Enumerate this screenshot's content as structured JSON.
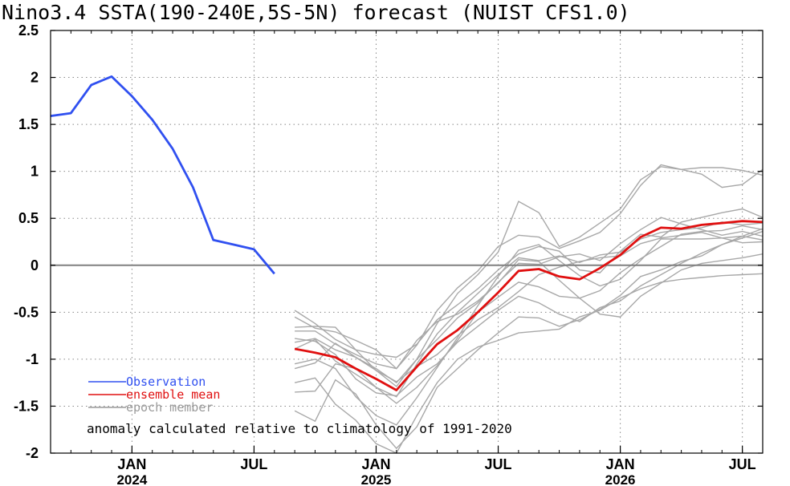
{
  "chart_data": {
    "type": "line",
    "title": "Nino3.4 SSTA(190-240E,5S-5N) forecast (NUIST CFS1.0)",
    "annotation": "anomaly calculated relative to climatology of 1991-2020",
    "ylim": [
      -2,
      2.5
    ],
    "yticks": [
      "2.5",
      "2",
      "1.5",
      "1",
      "0.5",
      "0",
      "-0.5",
      "-1",
      "-1.5",
      "-2"
    ],
    "yticks_values": [
      2.5,
      2,
      1.5,
      1,
      0.5,
      0,
      -0.5,
      -1,
      -1.5,
      -2
    ],
    "xlim": [
      "2023-09",
      "2026-08"
    ],
    "xticks": [
      {
        "label": "JAN",
        "year": "2024",
        "date": "2024-01"
      },
      {
        "label": "JUL",
        "year": "",
        "date": "2024-07"
      },
      {
        "label": "JAN",
        "year": "2025",
        "date": "2025-01"
      },
      {
        "label": "JUL",
        "year": "",
        "date": "2025-07"
      },
      {
        "label": "JAN",
        "year": "2026",
        "date": "2026-01"
      },
      {
        "label": "JUL",
        "year": "",
        "date": "2026-07"
      }
    ],
    "grid": true,
    "legend": [
      {
        "name": "Observation",
        "color": "#3050f0"
      },
      {
        "name": "ensemble mean",
        "color": "#e01010"
      },
      {
        "name": "epoch member",
        "color": "#999999"
      }
    ],
    "observation": {
      "name": "Observation",
      "color": "#3050f0",
      "x": [
        "2023-09",
        "2023-10",
        "2023-11",
        "2023-12",
        "2024-01",
        "2024-02",
        "2024-03",
        "2024-04",
        "2024-05",
        "2024-06",
        "2024-07",
        "2024-08"
      ],
      "values": [
        1.59,
        1.62,
        1.92,
        2.01,
        1.8,
        1.55,
        1.24,
        0.83,
        0.27,
        0.22,
        0.17,
        -0.09
      ]
    },
    "ensemble_mean": {
      "name": "ensemble mean",
      "color": "#e01010",
      "x": [
        "2024-09",
        "2024-10",
        "2024-11",
        "2024-12",
        "2025-01",
        "2025-02",
        "2025-03",
        "2025-04",
        "2025-05",
        "2025-06",
        "2025-07",
        "2025-08",
        "2025-09",
        "2025-10",
        "2025-11",
        "2025-12",
        "2026-01",
        "2026-02",
        "2026-03",
        "2026-04",
        "2026-05",
        "2026-06",
        "2026-07",
        "2026-08"
      ],
      "values": [
        -0.89,
        -0.93,
        -0.98,
        -1.1,
        -1.21,
        -1.33,
        -1.08,
        -0.84,
        -0.69,
        -0.5,
        -0.29,
        -0.06,
        -0.04,
        -0.12,
        -0.15,
        -0.03,
        0.11,
        0.3,
        0.4,
        0.39,
        0.43,
        0.45,
        0.47,
        0.46
      ]
    },
    "members": [
      {
        "values": [
          -0.48,
          -0.62,
          -0.79,
          -0.9,
          -0.95,
          -0.98,
          -0.84,
          -0.58,
          -0.42,
          -0.25,
          -0.05,
          0.12,
          0.2,
          0.15,
          -0.05,
          -0.08,
          0.15,
          0.33,
          0.3,
          0.46,
          0.51,
          0.56,
          0.6,
          0.51
        ]
      },
      {
        "values": [
          -0.66,
          -0.65,
          -0.66,
          -0.9,
          -1.12,
          -1.29,
          -1.0,
          -0.79,
          -0.56,
          -0.4,
          -0.18,
          0.02,
          0.01,
          0.09,
          0.12,
          0.05,
          0.23,
          0.38,
          0.51,
          0.44,
          0.38,
          0.32,
          0.36,
          0.31
        ]
      },
      {
        "values": [
          -0.89,
          -0.79,
          -1.02,
          -1.16,
          -1.3,
          -1.47,
          -1.3,
          -1.07,
          -0.8,
          -0.5,
          -0.34,
          -0.18,
          -0.23,
          -0.33,
          -0.35,
          -0.27,
          -0.08,
          0.07,
          0.2,
          0.33,
          0.36,
          0.37,
          0.42,
          0.38
        ]
      },
      {
        "values": [
          -1.1,
          -1.04,
          -0.83,
          -0.98,
          -1.12,
          -1.24,
          -1.08,
          -0.95,
          -0.75,
          -0.58,
          -0.45,
          -0.28,
          -0.1,
          -0.02,
          0.04,
          0.08,
          0.1,
          0.23,
          0.29,
          0.32,
          0.35,
          0.29,
          0.24,
          0.25
        ]
      },
      {
        "values": [
          -0.55,
          -0.67,
          -0.71,
          -0.8,
          -0.9,
          -1.1,
          -0.8,
          -0.6,
          -0.52,
          -0.38,
          -0.19,
          0.06,
          0.04,
          -0.16,
          -0.35,
          -0.52,
          -0.55,
          -0.33,
          -0.19,
          -0.05,
          0.02,
          0.05,
          0.08,
          0.12
        ]
      },
      {
        "values": [
          -0.78,
          -0.81,
          -0.95,
          -1.21,
          -1.36,
          -1.39,
          -1.19,
          -1.05,
          -0.82,
          -0.65,
          -0.48,
          -0.33,
          -0.4,
          -0.52,
          -0.6,
          -0.45,
          -0.38,
          -0.22,
          -0.1,
          0.02,
          0.13,
          0.22,
          0.31,
          0.39
        ]
      },
      {
        "values": [
          -1.35,
          -1.34,
          -1.05,
          -1.1,
          -1.3,
          -1.4,
          -1.05,
          -0.73,
          -0.5,
          -0.3,
          -0.1,
          0.08,
          0.05,
          0.1,
          0.03,
          0.11,
          0.14,
          0.28,
          0.35,
          0.38,
          0.4,
          0.46,
          0.43,
          0.45
        ]
      },
      {
        "values": [
          -1.55,
          -1.66,
          -1.22,
          -1.37,
          -1.7,
          -1.95,
          -1.72,
          -1.3,
          -1.1,
          -0.9,
          -0.72,
          -0.55,
          -0.56,
          -0.65,
          -0.58,
          -0.47,
          -0.32,
          -0.12,
          -0.05,
          0.04,
          0.1,
          0.22,
          0.29,
          0.36
        ]
      },
      {
        "values": [
          -1.25,
          -1.2,
          -1.48,
          -1.65,
          -1.9,
          -2.0,
          -1.6,
          -1.25,
          -1.0,
          -0.87,
          -0.8,
          -0.72,
          -0.7,
          -0.68,
          -0.55,
          -0.48,
          -0.35,
          -0.25,
          -0.18,
          -0.15,
          -0.13,
          -0.11,
          -0.1,
          -0.09
        ]
      },
      {
        "values": [
          -1.05,
          -1.0,
          -1.1,
          -1.4,
          -1.6,
          -1.7,
          -1.41,
          -1.09,
          -0.77,
          -0.43,
          -0.12,
          0.16,
          0.22,
          0.05,
          -0.11,
          -0.22,
          -0.15,
          0.05,
          0.28,
          0.28,
          0.28,
          0.29,
          0.31,
          0.27
        ]
      },
      {
        "values": [
          -0.7,
          -0.7,
          -0.84,
          -0.95,
          -1.05,
          -1.1,
          -0.85,
          -0.48,
          -0.24,
          -0.06,
          0.2,
          0.32,
          0.3,
          0.18,
          0.26,
          0.35,
          0.55,
          0.85,
          1.07,
          1.02,
          1.04,
          1.04,
          1.01,
          0.96
        ]
      },
      {
        "values": [
          -0.82,
          -0.78,
          -0.9,
          -0.98,
          -1.1,
          -1.25,
          -1.0,
          -0.62,
          -0.3,
          -0.1,
          0.14,
          0.68,
          0.56,
          0.2,
          0.3,
          0.45,
          0.6,
          0.91,
          1.05,
          1.02,
          0.97,
          0.83,
          0.86,
          1.02
        ]
      }
    ]
  }
}
